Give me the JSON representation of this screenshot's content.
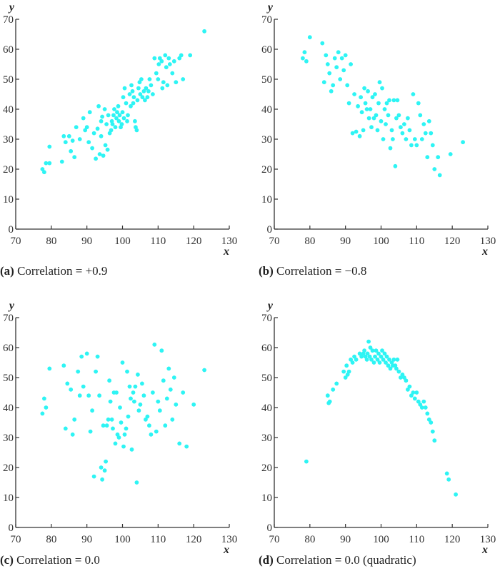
{
  "colors": {
    "points": "#2ef4f4",
    "axis": "#333333",
    "text": "#222222"
  },
  "chart_data": [
    {
      "type": "scatter",
      "panel_id": "(a)",
      "caption": "Correlation = +0.9",
      "xlabel": "x",
      "ylabel": "y",
      "xlim": [
        70,
        130
      ],
      "ylim": [
        0,
        70
      ],
      "xticks": [
        70,
        80,
        90,
        100,
        110,
        120,
        130
      ],
      "yticks": [
        0,
        10,
        20,
        30,
        40,
        50,
        60,
        70
      ],
      "grid": false,
      "points": [
        [
          77.5,
          20
        ],
        [
          78,
          19
        ],
        [
          78.5,
          22
        ],
        [
          79.5,
          22
        ],
        [
          79.5,
          27.5
        ],
        [
          83,
          22.5
        ],
        [
          83.5,
          31
        ],
        [
          84,
          29
        ],
        [
          85,
          31
        ],
        [
          85.5,
          26
        ],
        [
          86,
          29.5
        ],
        [
          86.5,
          24
        ],
        [
          87,
          34
        ],
        [
          88,
          30
        ],
        [
          89,
          37
        ],
        [
          89.5,
          33
        ],
        [
          90,
          34
        ],
        [
          90.5,
          29
        ],
        [
          90.8,
          39
        ],
        [
          91.5,
          27
        ],
        [
          92,
          32
        ],
        [
          92.5,
          23.5
        ],
        [
          93,
          33.5
        ],
        [
          93.3,
          41
        ],
        [
          93.6,
          25
        ],
        [
          94,
          31
        ],
        [
          94,
          36
        ],
        [
          94.3,
          37.5
        ],
        [
          94.6,
          24.5
        ],
        [
          95,
          40
        ],
        [
          95.2,
          28
        ],
        [
          95.5,
          35
        ],
        [
          95.8,
          26.5
        ],
        [
          96,
          38
        ],
        [
          96.4,
          32
        ],
        [
          96.8,
          33
        ],
        [
          97,
          36
        ],
        [
          97.2,
          35
        ],
        [
          97.5,
          38
        ],
        [
          97.7,
          40
        ],
        [
          98,
          34
        ],
        [
          98.3,
          37
        ],
        [
          98.5,
          39
        ],
        [
          98.8,
          41
        ],
        [
          99,
          36
        ],
        [
          99.2,
          38
        ],
        [
          99.5,
          34
        ],
        [
          99.8,
          35
        ],
        [
          100,
          39
        ],
        [
          100.2,
          44
        ],
        [
          100.4,
          37
        ],
        [
          100.6,
          47
        ],
        [
          101,
          42
        ],
        [
          101.3,
          36
        ],
        [
          101.5,
          38
        ],
        [
          102,
          45
        ],
        [
          102.3,
          41
        ],
        [
          102.5,
          48
        ],
        [
          102.8,
          46
        ],
        [
          103,
          42
        ],
        [
          103.2,
          44
        ],
        [
          103.5,
          36
        ],
        [
          103.7,
          34
        ],
        [
          104,
          33
        ],
        [
          104.2,
          43
        ],
        [
          104.5,
          47
        ],
        [
          104.8,
          49
        ],
        [
          105,
          45
        ],
        [
          105.3,
          50
        ],
        [
          105.6,
          44
        ],
        [
          106,
          46
        ],
        [
          106.3,
          43
        ],
        [
          106.6,
          47
        ],
        [
          107,
          44
        ],
        [
          107.3,
          46
        ],
        [
          107.6,
          50
        ],
        [
          108,
          48
        ],
        [
          108.5,
          45
        ],
        [
          109,
          57
        ],
        [
          109.5,
          52
        ],
        [
          110,
          50
        ],
        [
          110.2,
          55
        ],
        [
          110.5,
          57
        ],
        [
          111,
          56
        ],
        [
          111.2,
          47
        ],
        [
          111.5,
          49
        ],
        [
          112,
          58
        ],
        [
          112.3,
          54
        ],
        [
          112.6,
          48
        ],
        [
          113,
          57
        ],
        [
          113.3,
          55
        ],
        [
          114,
          52
        ],
        [
          114.5,
          56
        ],
        [
          115,
          49
        ],
        [
          116,
          57
        ],
        [
          116.5,
          58
        ],
        [
          117,
          50
        ],
        [
          119,
          58
        ],
        [
          123,
          66
        ]
      ]
    },
    {
      "type": "scatter",
      "panel_id": "(b)",
      "caption": "Correlation = −0.8",
      "xlabel": "x",
      "ylabel": "y",
      "xlim": [
        70,
        130
      ],
      "ylim": [
        0,
        70
      ],
      "xticks": [
        70,
        80,
        90,
        100,
        110,
        120,
        130
      ],
      "yticks": [
        0,
        10,
        20,
        30,
        40,
        50,
        60,
        70
      ],
      "grid": false,
      "points": [
        [
          78,
          57
        ],
        [
          78.5,
          59
        ],
        [
          79,
          56
        ],
        [
          80,
          64
        ],
        [
          83.5,
          62
        ],
        [
          84,
          49
        ],
        [
          84.5,
          58
        ],
        [
          85,
          55
        ],
        [
          85.5,
          52
        ],
        [
          86,
          46
        ],
        [
          86.5,
          48
        ],
        [
          87,
          57
        ],
        [
          87.5,
          54
        ],
        [
          88,
          59
        ],
        [
          88.5,
          50
        ],
        [
          89,
          57
        ],
        [
          89.5,
          53
        ],
        [
          90,
          58
        ],
        [
          90.5,
          48
        ],
        [
          91,
          42
        ],
        [
          91.5,
          55
        ],
        [
          92,
          32
        ],
        [
          92.5,
          45
        ],
        [
          93,
          32.5
        ],
        [
          93.5,
          41
        ],
        [
          94,
          31
        ],
        [
          94.3,
          44
        ],
        [
          94.6,
          39
        ],
        [
          95,
          33
        ],
        [
          95.3,
          47
        ],
        [
          95.6,
          42
        ],
        [
          96,
          40
        ],
        [
          96.3,
          46
        ],
        [
          96.6,
          37
        ],
        [
          97,
          40
        ],
        [
          97.3,
          34
        ],
        [
          97.6,
          44
        ],
        [
          98,
          37
        ],
        [
          98.3,
          45
        ],
        [
          98.6,
          38
        ],
        [
          99,
          33
        ],
        [
          99.3,
          42
        ],
        [
          99.6,
          49
        ],
        [
          100,
          36
        ],
        [
          100.3,
          47
        ],
        [
          100.6,
          30
        ],
        [
          101,
          40
        ],
        [
          101.3,
          35
        ],
        [
          101.6,
          42
        ],
        [
          102,
          38
        ],
        [
          102.3,
          43
        ],
        [
          102.6,
          27
        ],
        [
          103,
          33
        ],
        [
          103.3,
          30
        ],
        [
          103.6,
          43
        ],
        [
          104,
          21
        ],
        [
          104.3,
          37
        ],
        [
          104.6,
          43
        ],
        [
          105,
          38
        ],
        [
          105.5,
          34
        ],
        [
          106,
          32
        ],
        [
          106.5,
          35
        ],
        [
          107,
          30
        ],
        [
          107.5,
          37
        ],
        [
          108,
          33
        ],
        [
          108.5,
          28
        ],
        [
          109,
          45
        ],
        [
          109.5,
          30
        ],
        [
          110,
          28
        ],
        [
          110.5,
          42
        ],
        [
          111,
          38
        ],
        [
          111.5,
          30
        ],
        [
          112,
          35
        ],
        [
          112.5,
          32
        ],
        [
          113,
          24
        ],
        [
          113.5,
          36
        ],
        [
          114,
          32
        ],
        [
          114.5,
          28
        ],
        [
          115,
          20
        ],
        [
          116,
          24
        ],
        [
          116.5,
          18
        ],
        [
          119.5,
          25
        ],
        [
          123,
          29
        ]
      ]
    },
    {
      "type": "scatter",
      "panel_id": "(c)",
      "caption": "Correlation = 0.0",
      "xlabel": "x",
      "ylabel": "y",
      "xlim": [
        70,
        130
      ],
      "ylim": [
        0,
        70
      ],
      "xticks": [
        70,
        80,
        90,
        100,
        110,
        120,
        130
      ],
      "yticks": [
        0,
        10,
        20,
        30,
        40,
        50,
        60,
        70
      ],
      "grid": false,
      "points": [
        [
          77.5,
          38
        ],
        [
          78,
          43
        ],
        [
          78.5,
          40
        ],
        [
          79.5,
          53
        ],
        [
          83.5,
          54
        ],
        [
          84,
          33
        ],
        [
          84.5,
          48
        ],
        [
          85.5,
          46
        ],
        [
          86,
          31
        ],
        [
          86.5,
          36
        ],
        [
          87.5,
          52
        ],
        [
          88,
          44
        ],
        [
          88.5,
          57
        ],
        [
          89,
          47
        ],
        [
          90,
          58
        ],
        [
          90.5,
          44
        ],
        [
          91,
          32
        ],
        [
          91.5,
          39
        ],
        [
          92,
          17
        ],
        [
          92.5,
          52
        ],
        [
          93,
          57
        ],
        [
          93.5,
          44
        ],
        [
          94,
          20
        ],
        [
          94.3,
          16
        ],
        [
          94.6,
          34
        ],
        [
          95,
          19
        ],
        [
          95.3,
          22
        ],
        [
          95.6,
          34
        ],
        [
          96,
          36
        ],
        [
          96.3,
          49
        ],
        [
          96.6,
          42
        ],
        [
          97,
          36
        ],
        [
          97.3,
          33
        ],
        [
          97.6,
          45
        ],
        [
          98,
          28
        ],
        [
          98.3,
          45
        ],
        [
          98.6,
          31
        ],
        [
          99,
          30
        ],
        [
          99.3,
          40
        ],
        [
          99.6,
          35
        ],
        [
          100,
          55
        ],
        [
          100.3,
          27
        ],
        [
          100.6,
          31
        ],
        [
          101,
          33
        ],
        [
          101.3,
          52
        ],
        [
          101.6,
          37
        ],
        [
          102,
          47
        ],
        [
          102.3,
          43
        ],
        [
          102.6,
          26
        ],
        [
          103,
          45
        ],
        [
          103.3,
          42
        ],
        [
          103.6,
          47
        ],
        [
          104,
          15
        ],
        [
          104.3,
          51
        ],
        [
          104.6,
          39
        ],
        [
          105,
          41
        ],
        [
          105.5,
          48
        ],
        [
          106,
          44
        ],
        [
          106.5,
          36
        ],
        [
          107,
          37
        ],
        [
          107.5,
          34
        ],
        [
          108,
          31
        ],
        [
          108.5,
          45
        ],
        [
          109,
          61
        ],
        [
          109.5,
          32
        ],
        [
          110,
          42
        ],
        [
          110.5,
          39
        ],
        [
          111,
          59
        ],
        [
          111.5,
          49
        ],
        [
          112,
          34
        ],
        [
          112.5,
          43
        ],
        [
          113,
          53
        ],
        [
          113.5,
          46
        ],
        [
          114,
          36
        ],
        [
          114.5,
          50
        ],
        [
          115,
          41
        ],
        [
          116,
          28
        ],
        [
          117,
          45
        ],
        [
          118,
          27
        ],
        [
          120,
          41
        ],
        [
          123,
          52.5
        ]
      ]
    },
    {
      "type": "scatter",
      "panel_id": "(d)",
      "caption": "Correlation = 0.0 (quadratic)",
      "xlabel": "x",
      "ylabel": "y",
      "xlim": [
        70,
        130
      ],
      "ylim": [
        0,
        70
      ],
      "xticks": [
        70,
        80,
        90,
        100,
        110,
        120,
        130
      ],
      "yticks": [
        0,
        10,
        20,
        30,
        40,
        50,
        60,
        70
      ],
      "grid": false,
      "points": [
        [
          79,
          22
        ],
        [
          85,
          44
        ],
        [
          85.3,
          41.5
        ],
        [
          85.6,
          42
        ],
        [
          86.5,
          46
        ],
        [
          87.5,
          48
        ],
        [
          89.5,
          52
        ],
        [
          90,
          50
        ],
        [
          90.3,
          54
        ],
        [
          90.6,
          51
        ],
        [
          91,
          52
        ],
        [
          91.5,
          56
        ],
        [
          92,
          55
        ],
        [
          92.5,
          57
        ],
        [
          93,
          56
        ],
        [
          94,
          58
        ],
        [
          94.5,
          57
        ],
        [
          95,
          58
        ],
        [
          95.3,
          59
        ],
        [
          95.6,
          57
        ],
        [
          96,
          56
        ],
        [
          96.2,
          58
        ],
        [
          96.5,
          62
        ],
        [
          96.8,
          57
        ],
        [
          97,
          60
        ],
        [
          97.3,
          56
        ],
        [
          97.6,
          59
        ],
        [
          98,
          55
        ],
        [
          98.3,
          57
        ],
        [
          98.6,
          59
        ],
        [
          99,
          56
        ],
        [
          99.3,
          58
        ],
        [
          99.6,
          55
        ],
        [
          100,
          57
        ],
        [
          100.3,
          59
        ],
        [
          100.6,
          56
        ],
        [
          101,
          58
        ],
        [
          101.3,
          55
        ],
        [
          101.6,
          57
        ],
        [
          102,
          54
        ],
        [
          102.3,
          56
        ],
        [
          102.6,
          53
        ],
        [
          103,
          55
        ],
        [
          103.3,
          54
        ],
        [
          103.6,
          56
        ],
        [
          104,
          54
        ],
        [
          104.3,
          53
        ],
        [
          104.6,
          56
        ],
        [
          105,
          52
        ],
        [
          105.5,
          50
        ],
        [
          106,
          51
        ],
        [
          106.5,
          50
        ],
        [
          107,
          49
        ],
        [
          107.5,
          46
        ],
        [
          108,
          47
        ],
        [
          108.5,
          44
        ],
        [
          109,
          45
        ],
        [
          109.5,
          43
        ],
        [
          110,
          45
        ],
        [
          110.5,
          42
        ],
        [
          111,
          41
        ],
        [
          111.5,
          40
        ],
        [
          112,
          42
        ],
        [
          112.5,
          40
        ],
        [
          113,
          38
        ],
        [
          113.5,
          36
        ],
        [
          114,
          35
        ],
        [
          114.5,
          32
        ],
        [
          115,
          29
        ],
        [
          118.5,
          18
        ],
        [
          119,
          16
        ],
        [
          121,
          11
        ]
      ]
    }
  ]
}
